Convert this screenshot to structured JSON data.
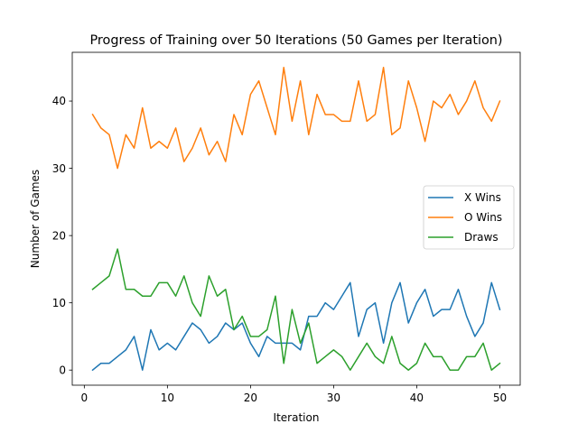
{
  "chart_data": {
    "type": "line",
    "title": "Progress of Training over 50 Iterations (50 Games per Iteration)",
    "xlabel": "Iteration",
    "ylabel": "Number of Games",
    "xlim": [
      -1.45,
      52.45
    ],
    "ylim": [
      -2.25,
      47.25
    ],
    "xticks": [
      0,
      10,
      20,
      30,
      40,
      50
    ],
    "yticks": [
      0,
      10,
      20,
      30,
      40
    ],
    "grid": false,
    "legend_position": "center-right",
    "x": [
      1,
      2,
      3,
      4,
      5,
      6,
      7,
      8,
      9,
      10,
      11,
      12,
      13,
      14,
      15,
      16,
      17,
      18,
      19,
      20,
      21,
      22,
      23,
      24,
      25,
      26,
      27,
      28,
      29,
      30,
      31,
      32,
      33,
      34,
      35,
      36,
      37,
      38,
      39,
      40,
      41,
      42,
      43,
      44,
      45,
      46,
      47,
      48,
      49,
      50
    ],
    "series": [
      {
        "name": "X Wins",
        "color": "#1f77b4",
        "values": [
          0,
          1,
          1,
          2,
          3,
          5,
          0,
          6,
          3,
          4,
          3,
          5,
          7,
          6,
          4,
          5,
          7,
          6,
          7,
          4,
          2,
          5,
          4,
          4,
          4,
          3,
          8,
          8,
          10,
          9,
          11,
          13,
          5,
          9,
          10,
          4,
          10,
          13,
          7,
          10,
          12,
          8,
          9,
          9,
          12,
          8,
          5,
          7,
          13,
          9
        ]
      },
      {
        "name": "O Wins",
        "color": "#ff7f0e",
        "values": [
          38,
          36,
          35,
          30,
          35,
          33,
          39,
          33,
          34,
          33,
          36,
          31,
          33,
          36,
          32,
          34,
          31,
          38,
          35,
          41,
          43,
          39,
          35,
          45,
          37,
          43,
          35,
          41,
          38,
          38,
          37,
          37,
          43,
          37,
          38,
          45,
          35,
          36,
          43,
          39,
          34,
          40,
          39,
          41,
          38,
          40,
          43,
          39,
          37,
          40
        ]
      },
      {
        "name": "Draws",
        "color": "#2ca02c",
        "values": [
          12,
          13,
          14,
          18,
          12,
          12,
          11,
          11,
          13,
          13,
          11,
          14,
          10,
          8,
          14,
          11,
          12,
          6,
          8,
          5,
          5,
          6,
          11,
          1,
          9,
          4,
          7,
          1,
          2,
          3,
          2,
          0,
          2,
          4,
          2,
          1,
          5,
          1,
          0,
          1,
          4,
          2,
          2,
          0,
          0,
          2,
          2,
          4,
          0,
          1
        ]
      }
    ]
  }
}
